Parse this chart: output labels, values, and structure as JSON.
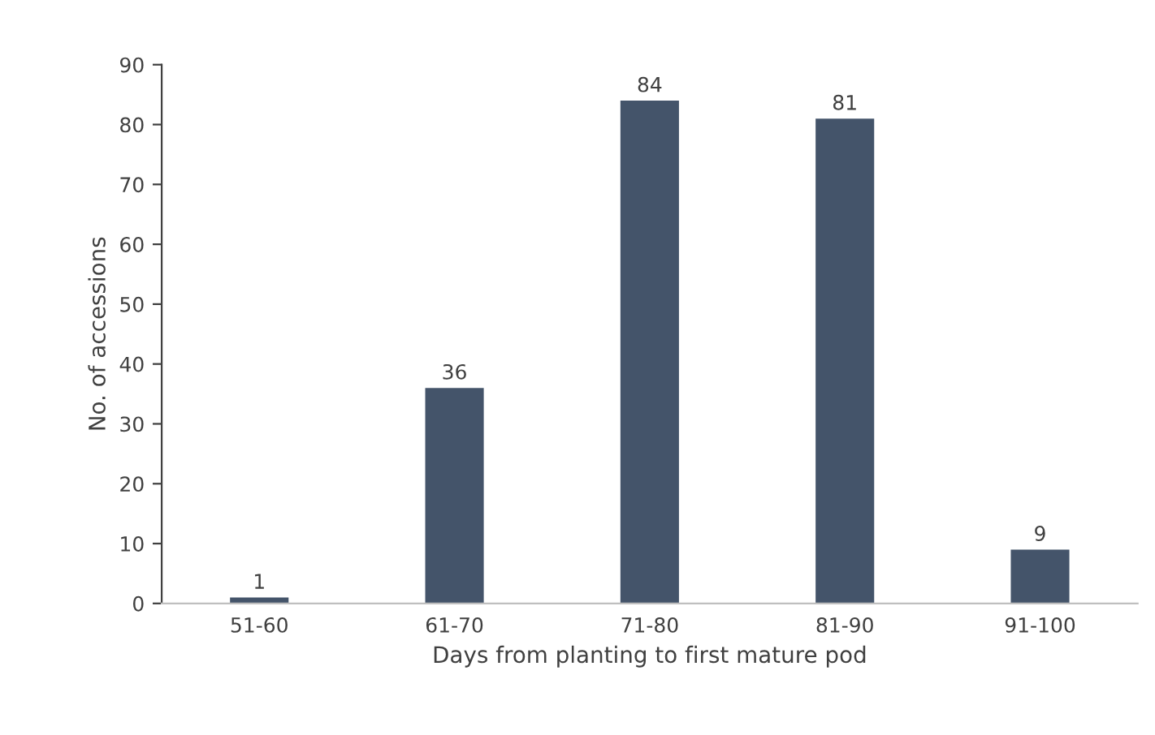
{
  "chart_data": {
    "type": "bar",
    "xlabel": "Days from planting to first mature pod",
    "ylabel": "No. of accessions",
    "categories": [
      "51-60",
      "61-70",
      "71-80",
      "81-90",
      "91-100"
    ],
    "values": [
      1,
      36,
      84,
      81,
      9
    ],
    "color": "#44546a",
    "ylim": [
      0,
      90
    ],
    "yticks": [
      0,
      10,
      20,
      30,
      40,
      50,
      60,
      70,
      80,
      90
    ],
    "grid": false,
    "data_labels": true
  }
}
